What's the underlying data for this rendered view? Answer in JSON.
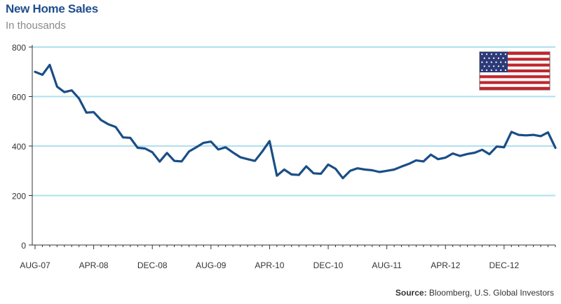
{
  "title": "New Home Sales",
  "subtitle": "In thousands",
  "source_label": "Source:",
  "source_text": "Bloomberg, U.S. Global Investors",
  "flag": {
    "icon": "us-flag-icon"
  },
  "colors": {
    "line": "#1a4e86",
    "grid": "#aee0f0",
    "axis": "#333333",
    "title": "#1f4e8c"
  },
  "chart_data": {
    "type": "line",
    "title": "New Home Sales",
    "ylabel": "",
    "xlabel": "",
    "ylim": [
      0,
      800
    ],
    "y_ticks": [
      0,
      200,
      400,
      600,
      800
    ],
    "x_ticks": [
      "AUG-07",
      "APR-08",
      "DEC-08",
      "AUG-09",
      "APR-10",
      "DEC-10",
      "AUG-11",
      "APR-12",
      "DEC-12"
    ],
    "x_tick_index": [
      0,
      8,
      16,
      24,
      32,
      40,
      48,
      56,
      64
    ],
    "grid": true,
    "series": [
      {
        "name": "",
        "values": [
          700,
          688,
          728,
          640,
          618,
          625,
          592,
          535,
          537,
          505,
          488,
          477,
          435,
          433,
          393,
          390,
          375,
          337,
          372,
          340,
          338,
          378,
          395,
          413,
          418,
          386,
          395,
          374,
          355,
          347,
          340,
          378,
          420,
          280,
          305,
          285,
          283,
          318,
          290,
          288,
          325,
          308,
          270,
          300,
          310,
          305,
          302,
          295,
          300,
          305,
          317,
          328,
          342,
          338,
          365,
          347,
          353,
          370,
          360,
          368,
          373,
          385,
          367,
          398,
          395,
          457,
          445,
          443,
          445,
          440,
          455,
          393
        ]
      }
    ]
  }
}
